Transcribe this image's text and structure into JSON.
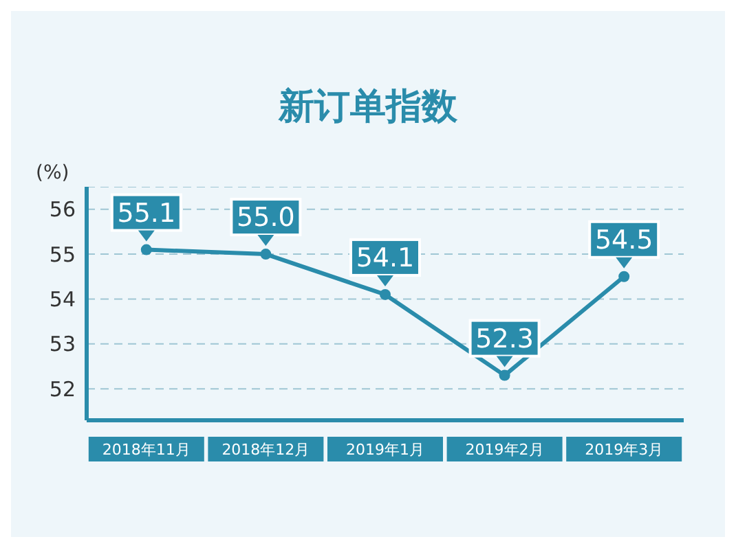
{
  "chart_data": {
    "type": "line",
    "title": "新订单指数",
    "ylabel": "(%)",
    "categories": [
      "2018年11月",
      "2018年12月",
      "2019年1月",
      "2019年2月",
      "2019年3月"
    ],
    "series": [
      {
        "color": "#2a8cab",
        "values": [
          55.1,
          55.0,
          54.1,
          52.3,
          54.5
        ],
        "value_labels": [
          "55.1",
          "55.0",
          "54.1",
          "52.3",
          "54.5"
        ]
      }
    ],
    "ylim": [
      51.3,
      56.5
    ],
    "yticks": [
      52,
      53,
      54,
      55,
      56
    ],
    "grid": "y",
    "marker": "circle",
    "line_style": "solid"
  }
}
